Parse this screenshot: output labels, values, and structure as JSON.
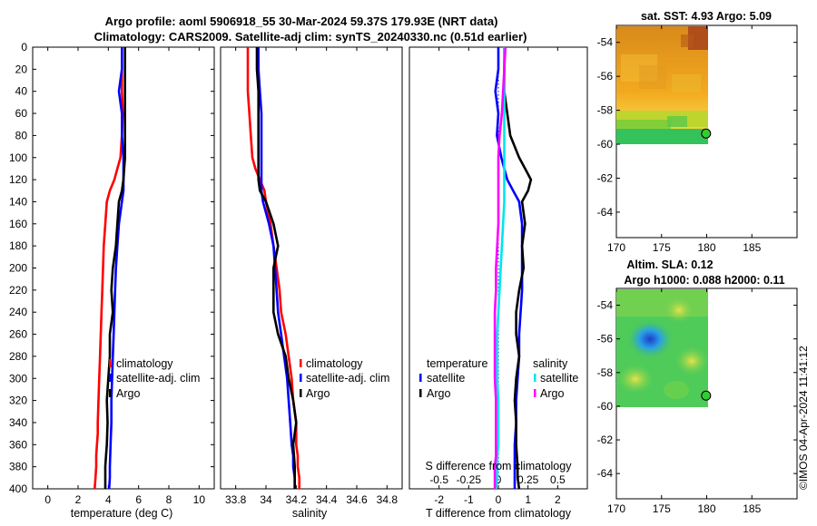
{
  "title": {
    "line1": "Argo profile: aoml 5906918_55 30-Mar-2024 59.37S 179.93E (NRT data)",
    "line2": "Climatology: CARS2009. Satellite-adj clim: synTS_20240330.nc (0.51d earlier)"
  },
  "side_caption": "©IMOS 04-Apr-2024 11:41:12",
  "chart_data": [
    {
      "id": "temperature",
      "type": "line",
      "xlabel": "temperature (deg C)",
      "ylabel": "",
      "xlim": [
        -1,
        11
      ],
      "ylim": [
        0,
        400
      ],
      "y_reversed": true,
      "xticks": [
        0,
        2,
        4,
        6,
        8,
        10
      ],
      "yticks": [
        0,
        20,
        40,
        60,
        80,
        100,
        120,
        140,
        160,
        180,
        200,
        220,
        240,
        260,
        280,
        300,
        320,
        340,
        360,
        380,
        400
      ],
      "series": [
        {
          "name": "climatology",
          "color": "#ff0000",
          "x": [
            4.9,
            4.9,
            4.9,
            4.95,
            4.9,
            4.8,
            4.6,
            4.4,
            4.1,
            3.9,
            3.8,
            3.7,
            3.65,
            3.6,
            3.55,
            3.5,
            3.45,
            3.4,
            3.35,
            3.3,
            3.3,
            3.25,
            3.2,
            3.2,
            3.15,
            3.1
          ],
          "y": [
            0,
            20,
            40,
            60,
            80,
            100,
            110,
            120,
            130,
            140,
            160,
            180,
            200,
            220,
            240,
            260,
            280,
            300,
            320,
            340,
            350,
            360,
            370,
            380,
            390,
            400
          ]
        },
        {
          "name": "satellite-adj. clim",
          "color": "#0000ff",
          "x": [
            4.9,
            4.9,
            4.7,
            4.9,
            4.9,
            5.0,
            5.0,
            5.0,
            5.0,
            4.9,
            4.7,
            4.6,
            4.5,
            4.45,
            4.4,
            4.35,
            4.3,
            4.25,
            4.2,
            4.2,
            4.15,
            4.1,
            4.1,
            4.05
          ],
          "y": [
            0,
            20,
            40,
            60,
            80,
            100,
            110,
            120,
            130,
            140,
            160,
            180,
            200,
            220,
            240,
            260,
            280,
            300,
            320,
            340,
            360,
            380,
            390,
            400
          ]
        },
        {
          "name": "Argo",
          "color": "#000000",
          "x": [
            5.1,
            5.1,
            5.1,
            5.1,
            5.1,
            5.1,
            5.05,
            5.0,
            4.9,
            4.7,
            4.6,
            4.5,
            4.3,
            4.2,
            4.3,
            4.1,
            4.1,
            4.0,
            3.9,
            3.95,
            3.9,
            3.85,
            3.8,
            3.8,
            3.8
          ],
          "y": [
            0,
            20,
            40,
            60,
            80,
            100,
            110,
            120,
            130,
            140,
            160,
            180,
            200,
            220,
            240,
            260,
            280,
            300,
            320,
            340,
            360,
            370,
            380,
            390,
            400
          ]
        }
      ]
    },
    {
      "id": "salinity",
      "type": "line",
      "xlabel": "salinity",
      "ylabel": "",
      "xlim": [
        33.7,
        34.9
      ],
      "ylim": [
        0,
        400
      ],
      "y_reversed": true,
      "xticks": [
        33.8,
        34,
        34.2,
        34.4,
        34.6,
        34.8
      ],
      "xtick_labels": [
        "33.8",
        "34",
        "34.2",
        "34.4",
        "34.6",
        "34.8"
      ],
      "series": [
        {
          "name": "climatology",
          "color": "#ff0000",
          "x": [
            33.88,
            33.88,
            33.88,
            33.89,
            33.9,
            33.91,
            33.93,
            33.96,
            33.99,
            34.0,
            34.03,
            34.05,
            34.07,
            34.09,
            34.1,
            34.13,
            34.15,
            34.17,
            34.18,
            34.2,
            34.2,
            34.21,
            34.21,
            34.22,
            34.22
          ],
          "y": [
            0,
            20,
            40,
            60,
            80,
            100,
            110,
            120,
            130,
            140,
            160,
            180,
            200,
            220,
            240,
            260,
            280,
            300,
            320,
            340,
            360,
            370,
            380,
            390,
            400
          ]
        },
        {
          "name": "satellite-adj. clim",
          "color": "#0000ff",
          "x": [
            33.95,
            33.95,
            33.96,
            33.97,
            33.97,
            33.97,
            33.97,
            33.97,
            33.97,
            33.98,
            34.02,
            34.05,
            34.06,
            34.07,
            34.08,
            34.1,
            34.12,
            34.14,
            34.15,
            34.16,
            34.17,
            34.18,
            34.18,
            34.19,
            34.19
          ],
          "y": [
            0,
            20,
            40,
            60,
            80,
            100,
            110,
            120,
            130,
            140,
            160,
            180,
            200,
            220,
            240,
            260,
            280,
            300,
            320,
            340,
            360,
            370,
            380,
            390,
            400
          ]
        },
        {
          "name": "Argo",
          "color": "#000000",
          "x": [
            33.94,
            33.94,
            33.95,
            33.95,
            33.95,
            33.95,
            33.95,
            33.95,
            33.96,
            34.0,
            34.05,
            34.08,
            34.05,
            34.05,
            34.05,
            34.08,
            34.13,
            34.15,
            34.18,
            34.2,
            34.18,
            34.19,
            34.19,
            34.19
          ],
          "y": [
            0,
            20,
            40,
            60,
            80,
            100,
            110,
            120,
            130,
            140,
            160,
            180,
            200,
            220,
            240,
            260,
            280,
            300,
            320,
            340,
            360,
            380,
            390,
            400
          ]
        }
      ]
    },
    {
      "id": "differences",
      "type": "line",
      "xlabel": "T difference from climatology",
      "xlabel_top": "S difference from climatology",
      "xlim": [
        -3,
        3
      ],
      "ylim": [
        0,
        400
      ],
      "y_reversed": true,
      "xticks": [
        -2,
        -1,
        0,
        1,
        2
      ],
      "xtick_labels": [
        "-2",
        "-1",
        "0",
        "1",
        "2"
      ],
      "s_xticks": [
        -0.5,
        -0.25,
        0,
        0.25,
        0.5
      ],
      "s_xtick_labels": [
        "-0.5",
        "-0.25",
        "0",
        "0.25",
        "0.5"
      ],
      "legend_left_title": "temperature",
      "legend_right_title": "salinity",
      "series": [
        {
          "name": "temperature satellite",
          "color": "#0000ff",
          "axis": "T",
          "x": [
            0.0,
            0.0,
            -0.1,
            0.0,
            -0.05,
            0.1,
            0.2,
            0.3,
            0.5,
            0.7,
            0.8,
            0.8,
            0.8,
            0.8,
            0.75,
            0.7,
            0.7,
            0.65,
            0.6,
            0.6,
            0.55,
            0.55,
            0.55,
            0.55
          ],
          "y": [
            0,
            20,
            40,
            60,
            80,
            100,
            110,
            120,
            130,
            140,
            160,
            180,
            200,
            220,
            240,
            260,
            280,
            300,
            320,
            340,
            360,
            380,
            390,
            400
          ]
        },
        {
          "name": "temperature Argo",
          "color": "#000000",
          "axis": "T",
          "x": [
            0.2,
            0.2,
            0.2,
            0.3,
            0.4,
            0.7,
            0.9,
            1.1,
            1.0,
            0.8,
            0.9,
            0.8,
            0.85,
            0.7,
            0.6,
            0.6,
            0.7,
            0.6,
            0.55,
            0.6,
            0.6,
            0.65,
            0.65,
            0.7
          ],
          "y": [
            0,
            20,
            40,
            60,
            80,
            100,
            110,
            120,
            130,
            140,
            160,
            180,
            200,
            220,
            240,
            260,
            280,
            300,
            320,
            340,
            360,
            380,
            390,
            400
          ]
        },
        {
          "name": "salinity satellite",
          "color": "#00e5ee",
          "axis": "S",
          "x": [
            0.05,
            0.05,
            0.05,
            0.05,
            0.05,
            0.05,
            0.05,
            0.05,
            0.04,
            0.03,
            0.02,
            0.01,
            0.0,
            -0.01,
            -0.01,
            -0.01,
            0.0,
            0.0,
            0.0,
            -0.01,
            -0.01,
            -0.01,
            -0.02
          ],
          "y": [
            0,
            20,
            40,
            60,
            80,
            100,
            120,
            140,
            160,
            180,
            200,
            220,
            240,
            260,
            280,
            300,
            320,
            340,
            360,
            370,
            380,
            390,
            400
          ]
        },
        {
          "name": "salinity Argo",
          "color": "#ff00ff",
          "axis": "S",
          "x": [
            0.06,
            0.05,
            0.04,
            0.03,
            0.01,
            0.0,
            0.0,
            0.0,
            0.0,
            -0.01,
            -0.02,
            -0.02,
            -0.03,
            -0.03,
            -0.03,
            -0.03,
            -0.02,
            -0.02,
            -0.02,
            -0.02,
            -0.03,
            -0.03,
            -0.03
          ],
          "y": [
            0,
            20,
            40,
            60,
            80,
            100,
            120,
            140,
            160,
            180,
            200,
            220,
            240,
            260,
            280,
            300,
            320,
            340,
            360,
            370,
            380,
            390,
            400
          ]
        }
      ]
    },
    {
      "id": "sst_map",
      "type": "heatmap",
      "title": "sat. SST: 4.93 Argo: 5.09",
      "xlim": [
        170,
        190
      ],
      "ylim": [
        -65.5,
        -53
      ],
      "xticks": [
        170,
        175,
        180,
        185
      ],
      "yticks": [
        -54,
        -56,
        -58,
        -60,
        -62,
        -64
      ],
      "coverage": {
        "lon": [
          170,
          180
        ],
        "lat": [
          -60.2,
          -53.2
        ]
      },
      "argo_point": {
        "lon": 179.93,
        "lat": -59.37
      }
    },
    {
      "id": "sla_map",
      "type": "heatmap",
      "title_line1": "Altim. SLA: 0.12",
      "title_line2": "Argo h1000: 0.088 h2000: 0.11",
      "xlim": [
        170,
        190
      ],
      "ylim": [
        -65.5,
        -53
      ],
      "xticks": [
        170,
        175,
        180,
        185
      ],
      "yticks": [
        -54,
        -56,
        -58,
        -60,
        -62,
        -64
      ],
      "coverage": {
        "lon": [
          170,
          180
        ],
        "lat": [
          -60,
          -53.2
        ]
      },
      "argo_point": {
        "lon": 179.93,
        "lat": -59.37
      }
    }
  ],
  "legends": {
    "temperature_panel": [
      "climatology",
      "satellite-adj. clim",
      "Argo"
    ],
    "salinity_panel": [
      "climatology",
      "satellite-adj. clim",
      "Argo"
    ],
    "diff_left": [
      "satellite",
      "Argo"
    ],
    "diff_right": [
      "satellite",
      "Argo"
    ]
  }
}
